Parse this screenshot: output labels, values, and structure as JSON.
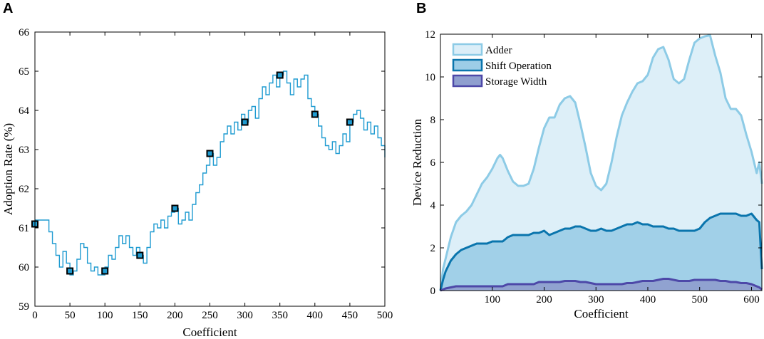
{
  "chart_data": [
    {
      "panel": "A",
      "type": "line",
      "title": "",
      "xlabel": "Coefficient",
      "ylabel": "Adoption Rate (%)",
      "xlim": [
        0,
        500
      ],
      "ylim": [
        59,
        66
      ],
      "xticks": [
        0,
        50,
        100,
        150,
        200,
        250,
        300,
        350,
        400,
        450,
        500
      ],
      "yticks": [
        59,
        60,
        61,
        62,
        63,
        64,
        65,
        66
      ],
      "grid": false,
      "line_color": "#1f9bd1",
      "marker_color": "#1f9bd1",
      "series": [
        {
          "name": "Adoption Rate",
          "x": [
            0,
            10,
            15,
            20,
            25,
            30,
            35,
            40,
            45,
            50,
            55,
            60,
            65,
            70,
            75,
            80,
            85,
            90,
            95,
            100,
            105,
            110,
            115,
            120,
            125,
            130,
            135,
            140,
            145,
            150,
            155,
            160,
            165,
            170,
            175,
            180,
            185,
            190,
            195,
            200,
            205,
            210,
            215,
            220,
            225,
            230,
            235,
            240,
            245,
            250,
            255,
            260,
            265,
            270,
            275,
            280,
            285,
            290,
            295,
            300,
            305,
            310,
            315,
            320,
            325,
            330,
            335,
            340,
            345,
            350,
            355,
            360,
            365,
            370,
            375,
            380,
            385,
            390,
            395,
            400,
            405,
            410,
            415,
            420,
            425,
            430,
            435,
            440,
            445,
            450,
            455,
            460,
            465,
            470,
            475,
            480,
            485,
            490,
            495,
            500
          ],
          "y": [
            61.2,
            61.2,
            61.2,
            60.9,
            60.6,
            60.3,
            60.0,
            60.4,
            60.1,
            59.8,
            59.9,
            60.2,
            60.6,
            60.5,
            60.1,
            59.9,
            60.0,
            59.8,
            59.8,
            60.0,
            60.3,
            60.2,
            60.5,
            60.8,
            60.6,
            60.8,
            60.5,
            60.3,
            60.5,
            60.3,
            60.1,
            60.5,
            60.9,
            61.1,
            61.0,
            61.2,
            61.0,
            61.3,
            61.4,
            61.5,
            61.1,
            61.2,
            61.4,
            61.2,
            61.6,
            61.9,
            62.1,
            62.4,
            62.6,
            62.9,
            62.6,
            62.8,
            63.2,
            63.4,
            63.6,
            63.4,
            63.7,
            63.5,
            63.9,
            63.7,
            64.0,
            64.1,
            63.8,
            64.3,
            64.6,
            64.4,
            64.7,
            64.9,
            64.6,
            64.9,
            65.0,
            64.7,
            64.4,
            64.8,
            64.6,
            64.8,
            64.9,
            64.3,
            64.1,
            63.9,
            63.6,
            63.3,
            63.1,
            63.0,
            63.2,
            62.9,
            63.1,
            63.4,
            63.2,
            63.7,
            63.9,
            64.0,
            63.8,
            63.5,
            63.7,
            63.4,
            63.6,
            63.3,
            63.1,
            62.8
          ]
        }
      ],
      "markers": {
        "x": [
          0,
          50,
          100,
          150,
          200,
          250,
          300,
          350,
          400,
          450
        ],
        "y": [
          61.1,
          59.9,
          59.9,
          60.3,
          61.5,
          62.9,
          63.7,
          64.9,
          63.9,
          63.7
        ]
      }
    },
    {
      "panel": "B",
      "type": "area",
      "title": "",
      "xlabel": "Coefficient",
      "ylabel": "Device Reduction",
      "xlim": [
        0,
        620
      ],
      "ylim": [
        0,
        12
      ],
      "xticks": [
        100,
        200,
        300,
        400,
        500,
        600
      ],
      "yticks": [
        0,
        2,
        4,
        6,
        8,
        10,
        12
      ],
      "grid": false,
      "legend_position": "top-left",
      "x": [
        0,
        5,
        10,
        20,
        30,
        40,
        50,
        60,
        70,
        80,
        90,
        100,
        110,
        115,
        120,
        130,
        140,
        150,
        160,
        170,
        180,
        190,
        200,
        210,
        220,
        230,
        240,
        250,
        260,
        270,
        280,
        290,
        300,
        310,
        320,
        330,
        340,
        350,
        360,
        370,
        380,
        390,
        400,
        410,
        420,
        430,
        440,
        450,
        460,
        470,
        480,
        490,
        500,
        510,
        520,
        530,
        540,
        550,
        560,
        570,
        580,
        590,
        600,
        610,
        615,
        620
      ],
      "series": [
        {
          "name": "Adder",
          "fill": "#dbeef8",
          "stroke": "#8dcbe6",
          "values": [
            0,
            1.0,
            1.5,
            2.5,
            3.2,
            3.5,
            3.7,
            4.0,
            4.5,
            5.0,
            5.3,
            5.7,
            6.2,
            6.35,
            6.2,
            5.6,
            5.1,
            4.9,
            4.9,
            5.0,
            5.7,
            6.7,
            7.6,
            8.1,
            8.1,
            8.7,
            9.0,
            9.1,
            8.8,
            7.8,
            6.7,
            5.5,
            4.9,
            4.7,
            5.0,
            6.0,
            7.2,
            8.2,
            8.8,
            9.3,
            9.7,
            9.8,
            10.1,
            10.9,
            11.3,
            11.4,
            10.8,
            9.9,
            9.7,
            9.9,
            10.8,
            11.6,
            11.8,
            11.9,
            11.95,
            11.0,
            10.2,
            9.0,
            8.5,
            8.5,
            8.2,
            7.3,
            6.5,
            5.5,
            6.0,
            5.0
          ]
        },
        {
          "name": "Shift Operation",
          "fill": "#9dcde7",
          "stroke": "#0a75ad",
          "values": [
            0,
            0.5,
            0.9,
            1.4,
            1.7,
            1.9,
            2.0,
            2.1,
            2.2,
            2.2,
            2.2,
            2.3,
            2.3,
            2.3,
            2.3,
            2.5,
            2.6,
            2.6,
            2.6,
            2.6,
            2.7,
            2.7,
            2.8,
            2.6,
            2.7,
            2.8,
            2.9,
            2.9,
            3.0,
            3.0,
            2.9,
            2.8,
            2.8,
            2.9,
            2.8,
            2.8,
            2.9,
            3.0,
            3.1,
            3.1,
            3.2,
            3.1,
            3.1,
            3.0,
            3.0,
            3.0,
            2.9,
            2.9,
            2.8,
            2.8,
            2.8,
            2.8,
            2.9,
            3.2,
            3.4,
            3.5,
            3.6,
            3.6,
            3.6,
            3.6,
            3.5,
            3.5,
            3.6,
            3.3,
            3.2,
            1.0
          ]
        },
        {
          "name": "Storage Width",
          "fill": "#8f9fcf",
          "stroke": "#4d48a8",
          "values": [
            0,
            0.05,
            0.1,
            0.15,
            0.2,
            0.2,
            0.2,
            0.2,
            0.2,
            0.2,
            0.2,
            0.2,
            0.2,
            0.2,
            0.2,
            0.3,
            0.3,
            0.3,
            0.3,
            0.3,
            0.3,
            0.4,
            0.4,
            0.4,
            0.4,
            0.4,
            0.45,
            0.45,
            0.45,
            0.4,
            0.4,
            0.35,
            0.3,
            0.3,
            0.3,
            0.3,
            0.3,
            0.3,
            0.35,
            0.35,
            0.4,
            0.45,
            0.45,
            0.45,
            0.5,
            0.55,
            0.55,
            0.5,
            0.45,
            0.45,
            0.45,
            0.5,
            0.5,
            0.5,
            0.5,
            0.5,
            0.45,
            0.45,
            0.4,
            0.4,
            0.35,
            0.35,
            0.3,
            0.2,
            0.15,
            0.05
          ]
        }
      ]
    }
  ],
  "panels": {
    "a": {
      "letter": "A"
    },
    "b": {
      "letter": "B"
    }
  }
}
